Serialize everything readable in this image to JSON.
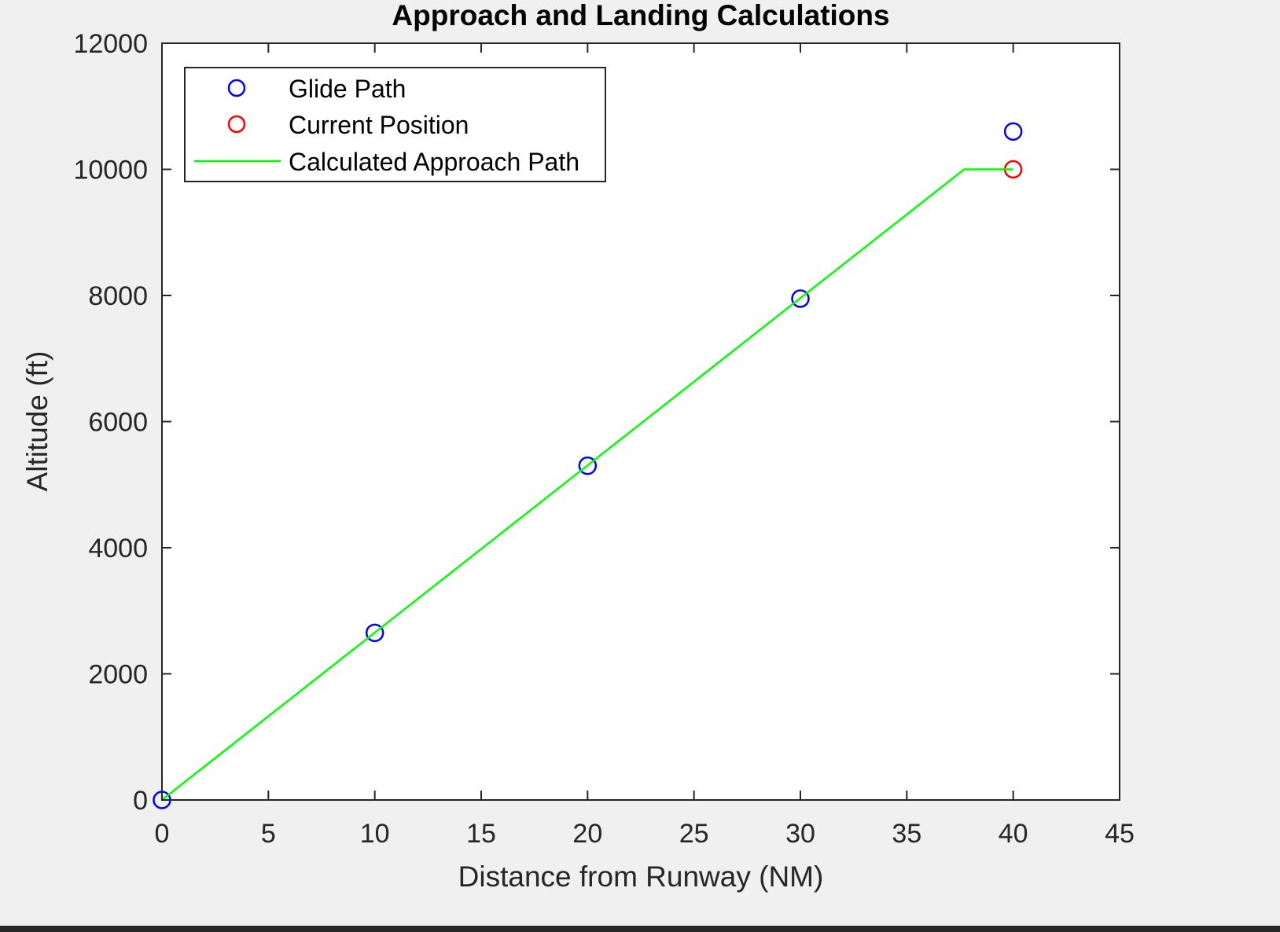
{
  "chart_data": {
    "type": "scatter",
    "title": "Approach and Landing Calculations",
    "xlabel": "Distance from Runway (NM)",
    "ylabel": "Altitude (ft)",
    "xlim": [
      0,
      45
    ],
    "ylim": [
      0,
      12000
    ],
    "xticks": [
      "0",
      "5",
      "10",
      "15",
      "20",
      "25",
      "30",
      "35",
      "40",
      "45"
    ],
    "yticks": [
      "0",
      "2000",
      "4000",
      "6000",
      "8000",
      "10000",
      "12000"
    ],
    "grid": false,
    "legend_placement": "top-left",
    "series": [
      {
        "name": "Glide Path",
        "kind": "markers",
        "marker": "circle",
        "color": "#0000ff",
        "x": [
          0,
          10,
          20,
          30,
          40
        ],
        "y": [
          0,
          2650,
          5300,
          7950,
          10600
        ]
      },
      {
        "name": "Current Position",
        "kind": "markers",
        "marker": "circle",
        "color": "#ff0000",
        "x": [
          40
        ],
        "y": [
          10000
        ]
      },
      {
        "name": "Calculated Approach Path",
        "kind": "line",
        "color": "#00ff00",
        "x": [
          0,
          37.7,
          40
        ],
        "y": [
          0,
          10000,
          10000
        ]
      }
    ]
  }
}
